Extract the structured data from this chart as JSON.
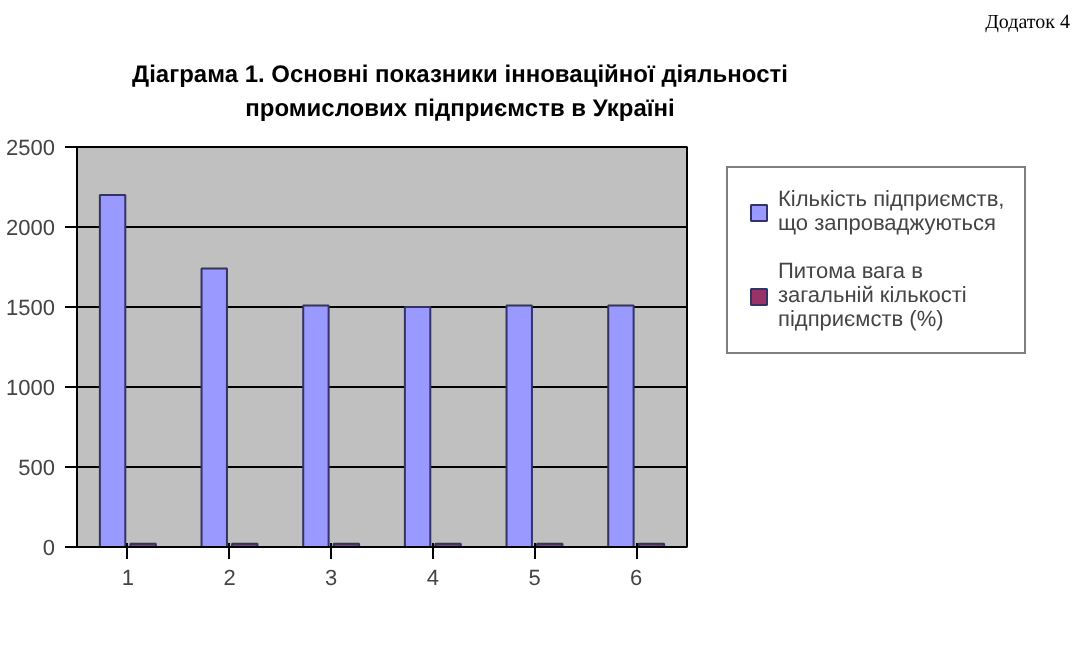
{
  "chart_data": {
    "type": "bar",
    "title": "Діаграма 1. Основні показники інноваційної діяльності промислових підприємств в Україні",
    "categories": [
      "1",
      "2",
      "3",
      "4",
      "5",
      "6"
    ],
    "series": [
      {
        "name": "Кількість підприємств, що запроваджуються",
        "color": "#9999ff",
        "values": [
          2200,
          1740,
          1510,
          1500,
          1510,
          1510
        ]
      },
      {
        "name": "Питома вага в загальній кількості підприємств (%)",
        "color": "#993366",
        "values": [
          20,
          20,
          20,
          20,
          20,
          20
        ]
      }
    ],
    "ylim": [
      0,
      2500
    ],
    "yticks": [
      0,
      500,
      1000,
      1500,
      2000,
      2500
    ],
    "grid": "y",
    "legend": "right",
    "annotations": [
      "Додаток 4"
    ]
  }
}
